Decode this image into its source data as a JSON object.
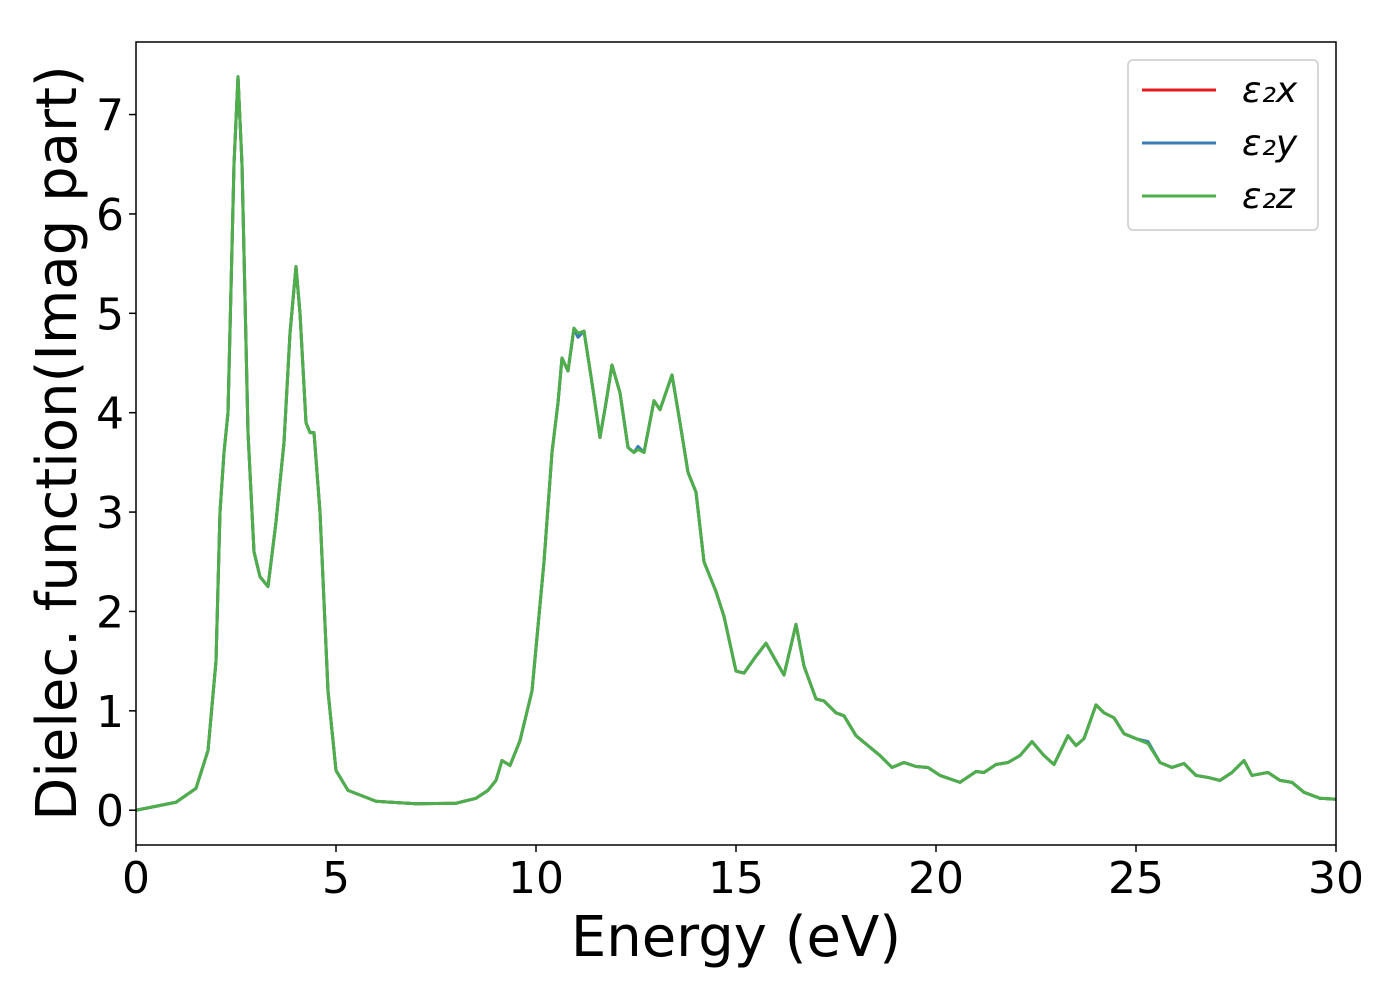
{
  "chart_data": {
    "type": "line",
    "xlabel": "Energy (eV)",
    "ylabel": "Dielec. function(Imag part)",
    "xlim": [
      0,
      30
    ],
    "xticks": [
      0,
      5,
      10,
      15,
      20,
      25,
      30
    ],
    "ylim": [
      -0.35,
      7.73
    ],
    "yticks": [
      0,
      1,
      2,
      3,
      4,
      5,
      6,
      7
    ],
    "legend": "upper right",
    "grid": false,
    "x": [
      0,
      1,
      1.5,
      1.8,
      2.0,
      2.1,
      2.2,
      2.3,
      2.45,
      2.55,
      2.65,
      2.8,
      2.95,
      3.1,
      3.3,
      3.5,
      3.7,
      3.85,
      4.0,
      4.1,
      4.25,
      4.35,
      4.45,
      4.6,
      4.8,
      5.0,
      5.3,
      6,
      7,
      8,
      8.5,
      8.8,
      9.0,
      9.15,
      9.35,
      9.6,
      9.9,
      10.2,
      10.4,
      10.55,
      10.65,
      10.8,
      10.95,
      11.05,
      11.2,
      11.4,
      11.6,
      11.75,
      11.9,
      12.1,
      12.3,
      12.45,
      12.55,
      12.7,
      12.95,
      13.1,
      13.4,
      13.6,
      13.8,
      14.0,
      14.2,
      14.5,
      14.7,
      15.0,
      15.2,
      15.5,
      15.75,
      16.0,
      16.2,
      16.5,
      16.7,
      17.0,
      17.2,
      17.5,
      17.7,
      18.0,
      18.3,
      18.6,
      18.9,
      19.2,
      19.5,
      19.8,
      20.1,
      20.6,
      21.0,
      21.2,
      21.5,
      21.8,
      22.1,
      22.4,
      22.7,
      22.95,
      23.3,
      23.5,
      23.7,
      24.0,
      24.2,
      24.45,
      24.7,
      25.0,
      25.3,
      25.6,
      25.9,
      26.2,
      26.5,
      26.8,
      27.1,
      27.4,
      27.7,
      27.9,
      28.3,
      28.6,
      28.9,
      29.2,
      29.6,
      30
    ],
    "series": [
      {
        "name": "ε₂x",
        "color": "#e41a1c",
        "values": [
          0,
          0.08,
          0.22,
          0.6,
          1.5,
          3.0,
          3.6,
          4.0,
          6.5,
          7.38,
          6.5,
          3.8,
          2.6,
          2.35,
          2.25,
          2.9,
          3.7,
          4.8,
          5.47,
          5.0,
          3.9,
          3.8,
          3.8,
          3.0,
          1.2,
          0.4,
          0.2,
          0.09,
          0.065,
          0.07,
          0.12,
          0.2,
          0.3,
          0.5,
          0.45,
          0.7,
          1.2,
          2.5,
          3.6,
          4.1,
          4.55,
          4.42,
          4.85,
          4.76,
          4.82,
          4.3,
          3.75,
          4.1,
          4.48,
          4.2,
          3.65,
          3.6,
          3.65,
          3.6,
          4.12,
          4.03,
          4.38,
          3.9,
          3.4,
          3.2,
          2.5,
          2.2,
          1.95,
          1.4,
          1.38,
          1.55,
          1.68,
          1.5,
          1.36,
          1.87,
          1.45,
          1.12,
          1.1,
          0.98,
          0.95,
          0.75,
          0.65,
          0.55,
          0.43,
          0.48,
          0.44,
          0.43,
          0.35,
          0.28,
          0.39,
          0.38,
          0.46,
          0.48,
          0.55,
          0.69,
          0.55,
          0.46,
          0.75,
          0.65,
          0.72,
          1.06,
          0.98,
          0.93,
          0.77,
          0.72,
          0.68,
          0.48,
          0.43,
          0.47,
          0.35,
          0.33,
          0.3,
          0.38,
          0.5,
          0.35,
          0.38,
          0.3,
          0.28,
          0.18,
          0.12,
          0.11
        ]
      },
      {
        "name": "ε₂y",
        "color": "#377eb8",
        "values": [
          0,
          0.08,
          0.22,
          0.6,
          1.5,
          3.0,
          3.6,
          4.0,
          6.5,
          7.38,
          6.5,
          3.8,
          2.6,
          2.35,
          2.25,
          2.9,
          3.7,
          4.8,
          5.47,
          5.0,
          3.9,
          3.8,
          3.8,
          3.0,
          1.2,
          0.4,
          0.2,
          0.09,
          0.065,
          0.07,
          0.12,
          0.2,
          0.3,
          0.5,
          0.45,
          0.7,
          1.2,
          2.5,
          3.6,
          4.1,
          4.55,
          4.42,
          4.85,
          4.76,
          4.82,
          4.3,
          3.75,
          4.1,
          4.48,
          4.2,
          3.65,
          3.6,
          3.66,
          3.6,
          4.12,
          4.03,
          4.38,
          3.9,
          3.4,
          3.2,
          2.5,
          2.2,
          1.95,
          1.4,
          1.38,
          1.55,
          1.68,
          1.5,
          1.36,
          1.87,
          1.45,
          1.12,
          1.1,
          0.98,
          0.95,
          0.75,
          0.65,
          0.55,
          0.43,
          0.48,
          0.44,
          0.43,
          0.35,
          0.28,
          0.39,
          0.38,
          0.46,
          0.48,
          0.55,
          0.69,
          0.55,
          0.46,
          0.75,
          0.65,
          0.72,
          1.06,
          0.98,
          0.93,
          0.77,
          0.72,
          0.69,
          0.48,
          0.43,
          0.47,
          0.35,
          0.33,
          0.3,
          0.38,
          0.5,
          0.35,
          0.38,
          0.3,
          0.28,
          0.18,
          0.12,
          0.11
        ]
      },
      {
        "name": "ε₂z",
        "color": "#4daf4a",
        "values": [
          0,
          0.08,
          0.22,
          0.6,
          1.5,
          3.0,
          3.6,
          4.0,
          6.5,
          7.38,
          6.5,
          3.8,
          2.6,
          2.35,
          2.25,
          2.9,
          3.7,
          4.8,
          5.47,
          5.0,
          3.9,
          3.8,
          3.8,
          3.0,
          1.2,
          0.4,
          0.2,
          0.09,
          0.065,
          0.07,
          0.12,
          0.2,
          0.3,
          0.5,
          0.45,
          0.7,
          1.2,
          2.5,
          3.6,
          4.1,
          4.55,
          4.42,
          4.85,
          4.8,
          4.82,
          4.3,
          3.75,
          4.1,
          4.48,
          4.2,
          3.65,
          3.6,
          3.63,
          3.6,
          4.12,
          4.03,
          4.38,
          3.9,
          3.4,
          3.2,
          2.5,
          2.2,
          1.95,
          1.4,
          1.38,
          1.55,
          1.68,
          1.5,
          1.36,
          1.87,
          1.45,
          1.12,
          1.1,
          0.98,
          0.95,
          0.75,
          0.65,
          0.55,
          0.43,
          0.48,
          0.44,
          0.43,
          0.35,
          0.28,
          0.39,
          0.38,
          0.46,
          0.48,
          0.55,
          0.69,
          0.55,
          0.46,
          0.75,
          0.65,
          0.72,
          1.06,
          0.98,
          0.93,
          0.77,
          0.72,
          0.67,
          0.48,
          0.43,
          0.47,
          0.35,
          0.33,
          0.3,
          0.38,
          0.5,
          0.35,
          0.38,
          0.3,
          0.28,
          0.18,
          0.12,
          0.11
        ]
      }
    ]
  }
}
